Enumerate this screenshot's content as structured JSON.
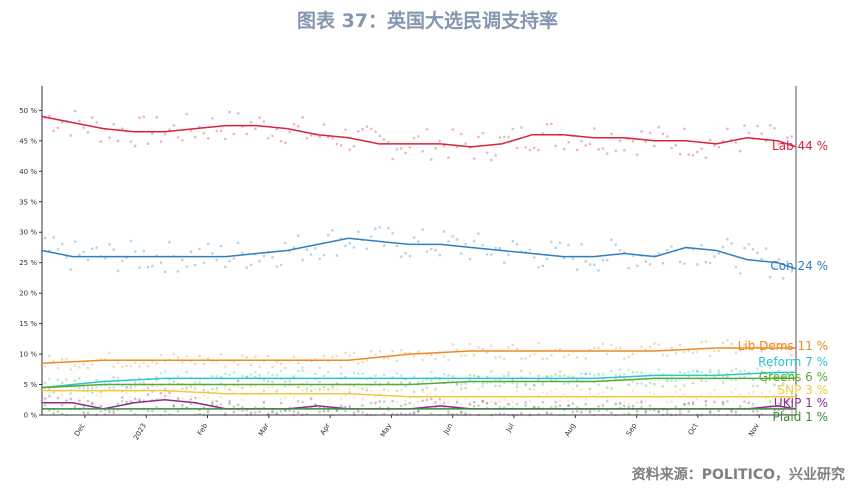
{
  "title": "图表 37：英国大选民调支持率",
  "source": "资料来源：POLITICO，兴业研究",
  "chart_data": {
    "type": "line",
    "title": "图表 37：英国大选民调支持率",
    "ylim": [
      0,
      54
    ],
    "y_ticks": [
      {
        "value": 0,
        "label": "0 %"
      },
      {
        "value": 5,
        "label": "5 %"
      },
      {
        "value": 10,
        "label": "10 %"
      },
      {
        "value": 15,
        "label": "15 %"
      },
      {
        "value": 20,
        "label": "20 %"
      },
      {
        "value": 25,
        "label": "25 %"
      },
      {
        "value": 30,
        "label": "30 %"
      },
      {
        "value": 35,
        "label": "35 %"
      },
      {
        "value": 40,
        "label": "40 %"
      },
      {
        "value": 45,
        "label": "45 %"
      },
      {
        "value": 50,
        "label": "50 %"
      }
    ],
    "x_ticks": [
      "Dec",
      "2023",
      "Feb",
      "Mar",
      "Apr",
      "May",
      "Jun",
      "Jul",
      "Aug",
      "Sep",
      "Oct",
      "Nov"
    ],
    "x_tick_months": [
      1,
      2,
      3,
      4,
      5,
      6,
      7,
      8,
      9,
      10,
      11,
      12
    ],
    "x_range_months": [
      0.3,
      12.6
    ],
    "grid": false,
    "legend": "end-of-line labels",
    "series": [
      {
        "name": "Lab",
        "end_label": "Lab 44 %",
        "color": "#d8233c",
        "x": [
          0.3,
          0.8,
          1.3,
          1.8,
          2.3,
          2.8,
          3.3,
          3.8,
          4.3,
          4.8,
          5.3,
          5.8,
          6.3,
          6.8,
          7.3,
          7.8,
          8.3,
          8.8,
          9.3,
          9.8,
          10.3,
          10.8,
          11.3,
          11.8,
          12.3,
          12.6
        ],
        "values": [
          49,
          48,
          47,
          46.5,
          46.5,
          47,
          47.5,
          47.5,
          47,
          46,
          45.5,
          44.5,
          44.5,
          44.5,
          44,
          44.5,
          46,
          46,
          45.5,
          45.5,
          45,
          45,
          44.5,
          45.5,
          45,
          44
        ]
      },
      {
        "name": "Con",
        "end_label": "Con 24 %",
        "color": "#2f7fc1",
        "x": [
          0.3,
          0.8,
          1.3,
          1.8,
          2.3,
          2.8,
          3.3,
          3.8,
          4.3,
          4.8,
          5.3,
          5.8,
          6.3,
          6.8,
          7.3,
          7.8,
          8.3,
          8.8,
          9.3,
          9.8,
          10.3,
          10.8,
          11.3,
          11.8,
          12.3,
          12.6
        ],
        "values": [
          27,
          26,
          26,
          26,
          26,
          26,
          26,
          26.5,
          27,
          28,
          29,
          28.5,
          28,
          28,
          27.5,
          27,
          26.5,
          26,
          26,
          26.5,
          26,
          27.5,
          27,
          25.5,
          25,
          24
        ]
      },
      {
        "name": "Lib Dems",
        "end_label": "Lib Dems 11 %",
        "color": "#f08a24",
        "x": [
          0.3,
          1.3,
          2.3,
          3.3,
          4.3,
          5.3,
          6.3,
          7.3,
          8.3,
          9.3,
          10.3,
          11.3,
          12.3,
          12.6
        ],
        "values": [
          8.5,
          9,
          9,
          9,
          9,
          9,
          10,
          10.5,
          10.5,
          10.5,
          10.5,
          11,
          11,
          11
        ]
      },
      {
        "name": "Reform",
        "end_label": "Reform 7 %",
        "color": "#2bc5cf",
        "x": [
          0.3,
          1.3,
          2.3,
          3.3,
          4.3,
          5.3,
          6.3,
          7.3,
          8.3,
          9.3,
          10.3,
          11.3,
          12.3,
          12.6
        ],
        "values": [
          4.5,
          5.5,
          6,
          6,
          6,
          6,
          6,
          6,
          6,
          6,
          6.5,
          6.5,
          7,
          7
        ]
      },
      {
        "name": "Greens",
        "end_label": "Greens 6 %",
        "color": "#5aa832",
        "x": [
          0.3,
          1.3,
          2.3,
          3.3,
          4.3,
          5.3,
          6.3,
          7.3,
          8.3,
          9.3,
          10.3,
          11.3,
          12.3,
          12.6
        ],
        "values": [
          4.5,
          5,
          5,
          5,
          5,
          5,
          5,
          5.5,
          5.5,
          5.5,
          6,
          6,
          6,
          6
        ]
      },
      {
        "name": "SNP",
        "end_label": "SNP 3 %",
        "color": "#f5c842",
        "x": [
          0.3,
          1.3,
          2.3,
          3.3,
          4.3,
          5.3,
          6.3,
          7.3,
          8.3,
          9.3,
          10.3,
          11.3,
          12.3,
          12.6
        ],
        "values": [
          4,
          4,
          4,
          3.5,
          3.5,
          3.5,
          3,
          3,
          3,
          3,
          3,
          3,
          3,
          3
        ]
      },
      {
        "name": "UKIP",
        "end_label": "UKIP 1 %",
        "color": "#8b2c8e",
        "x": [
          0.3,
          0.8,
          1.3,
          1.8,
          2.3,
          2.8,
          3.3,
          3.8,
          4.3,
          4.8,
          5.3,
          5.8,
          6.3,
          6.8,
          7.3,
          7.8,
          8.3,
          8.8,
          9.3,
          9.8,
          10.3,
          10.8,
          11.3,
          11.8,
          12.3,
          12.6
        ],
        "values": [
          2,
          2,
          1,
          2,
          2.5,
          2,
          1,
          1,
          1,
          1.5,
          1,
          1,
          1,
          1.5,
          1,
          1,
          1,
          1,
          1,
          1,
          1,
          1,
          1,
          1,
          1.5,
          1
        ]
      },
      {
        "name": "Plaid",
        "end_label": "Plaid 1 %",
        "color": "#3c8a3c",
        "x": [
          0.3,
          12.6
        ],
        "values": [
          1,
          1
        ]
      }
    ]
  }
}
